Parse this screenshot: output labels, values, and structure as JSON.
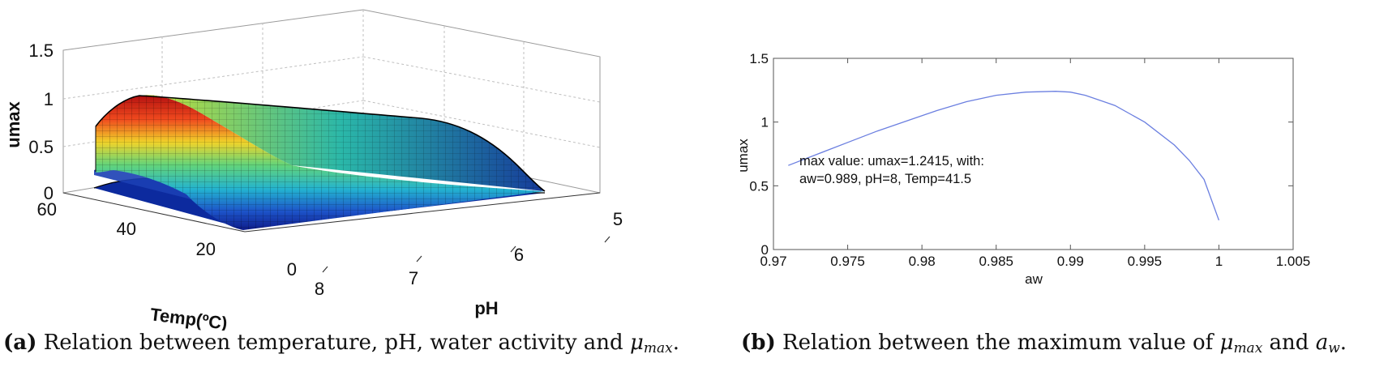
{
  "panel_a": {
    "chart_data": {
      "type": "surface3d",
      "zlabel": "umax",
      "xlabel": "Temp(ºC)",
      "ylabel": "pH",
      "ztick_labels": [
        "1.5",
        "1",
        "0.5",
        "0"
      ],
      "temp_tick_labels": [
        "60",
        "40",
        "20",
        "0"
      ],
      "ph_tick_labels": [
        "8",
        "7",
        "6",
        "5"
      ],
      "zlim": [
        0,
        1.5
      ],
      "temp_range": [
        0,
        60
      ],
      "ph_range": [
        5,
        8
      ],
      "colormap": "jet",
      "peak_value": 1.24,
      "peak_temp": 41.5,
      "peak_ph": 8
    },
    "caption": {
      "letter": "(a)",
      "text": " Relation between temperature, pH, water activity and ",
      "symbol": "μ",
      "subscript": "max",
      "end": "."
    }
  },
  "panel_b": {
    "chart_data": {
      "type": "line",
      "title": "",
      "xlabel": "aw",
      "ylabel": "umax",
      "xlim": [
        0.97,
        1.005
      ],
      "ylim": [
        0,
        1.5
      ],
      "xtick_labels": [
        "0.97",
        "0.975",
        "0.98",
        "0.985",
        "0.99",
        "0.995",
        "1",
        "1.005"
      ],
      "xtick_values": [
        0.97,
        0.975,
        0.98,
        0.985,
        0.99,
        0.995,
        1.0,
        1.005
      ],
      "ytick_labels": [
        "0",
        "0.5",
        "1",
        "1.5"
      ],
      "ytick_values": [
        0,
        0.5,
        1.0,
        1.5
      ],
      "series": [
        {
          "name": "umax",
          "color": "#6b7fe0",
          "x": [
            0.971,
            0.973,
            0.975,
            0.977,
            0.979,
            0.981,
            0.983,
            0.985,
            0.987,
            0.989,
            0.99,
            0.991,
            0.993,
            0.995,
            0.997,
            0.998,
            0.999,
            1.0
          ],
          "y": [
            0.66,
            0.75,
            0.84,
            0.93,
            1.01,
            1.09,
            1.16,
            1.21,
            1.235,
            1.2415,
            1.235,
            1.21,
            1.13,
            1.0,
            0.82,
            0.7,
            0.55,
            0.23
          ]
        }
      ],
      "annotation_line1": "max value: umax=1.2415, with:",
      "annotation_line2": "aw=0.989, pH=8, Temp=41.5"
    },
    "caption": {
      "letter": "(b)",
      "text": " Relation between the maximum value of ",
      "symbol": "μ",
      "subscript": "max",
      "middle": " and ",
      "symbol2": "a",
      "subscript2": "w",
      "end": "."
    }
  }
}
